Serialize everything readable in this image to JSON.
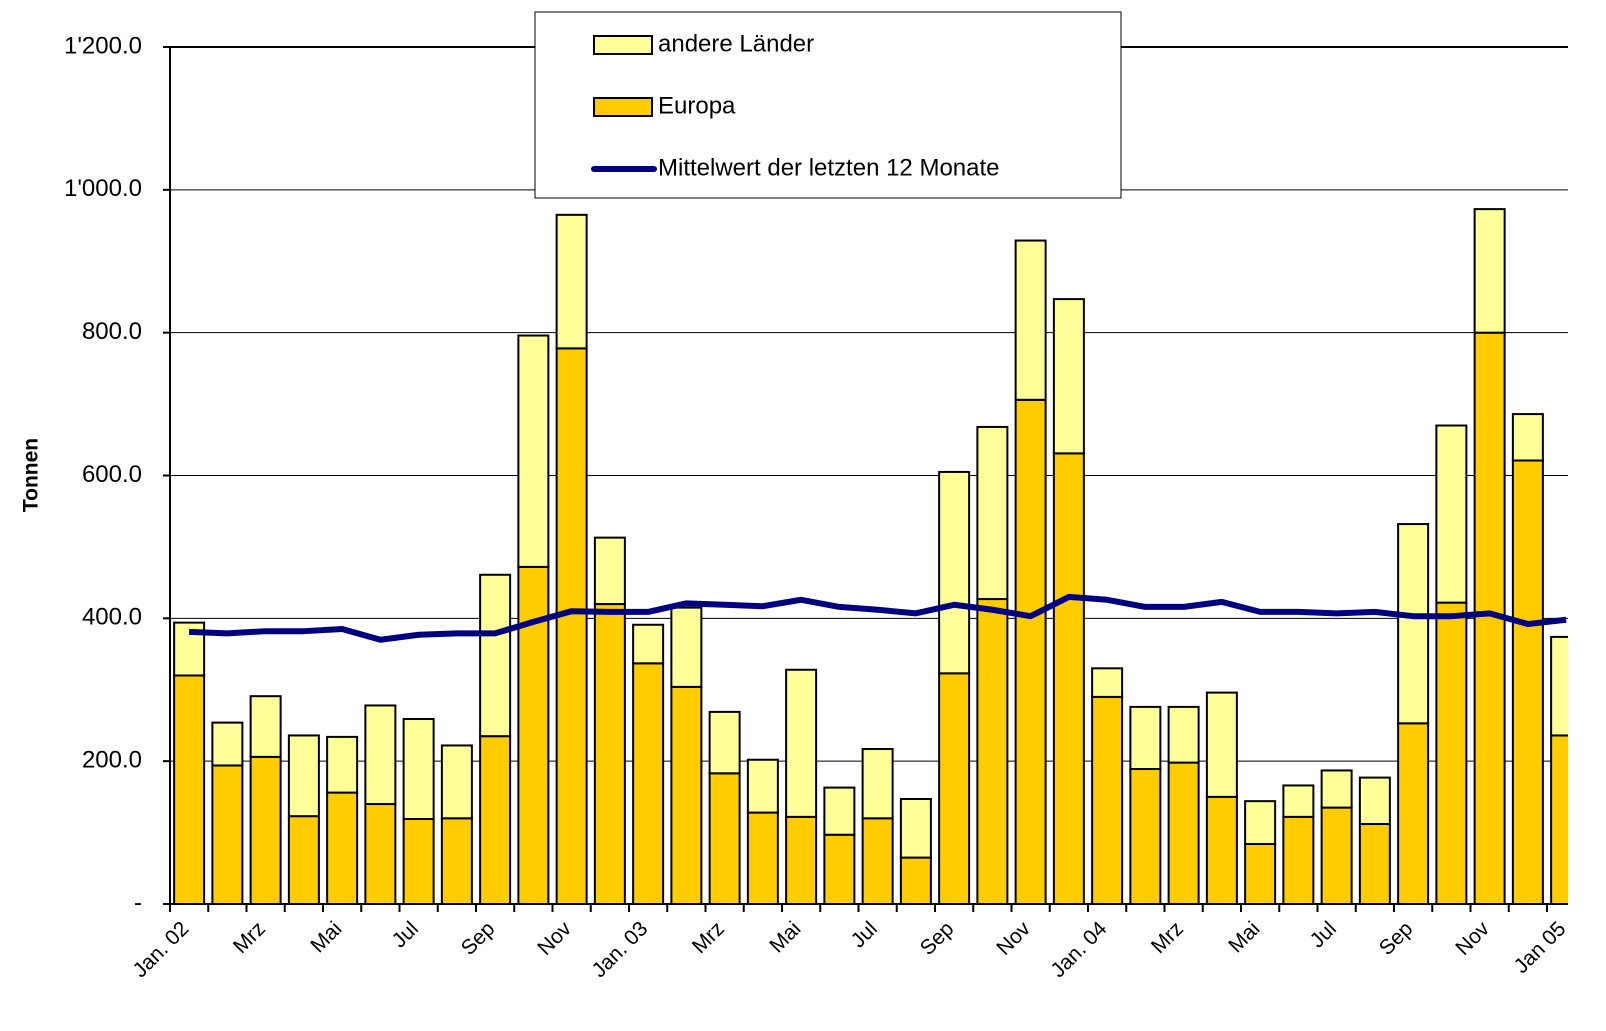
{
  "chart_data": {
    "type": "bar",
    "stacked": true,
    "y_label": "Tonnen",
    "categories": [
      "Jan. 02",
      null,
      "Mrz",
      null,
      "Mai",
      null,
      "Jul",
      null,
      "Sep",
      null,
      "Nov",
      null,
      "Jan. 03",
      null,
      "Mrz",
      null,
      "Mai",
      null,
      "Jul",
      null,
      "Sep",
      null,
      "Nov",
      null,
      "Jan. 04",
      null,
      "Mrz",
      null,
      "Mai",
      null,
      "Jul",
      null,
      "Sep",
      null,
      "Nov",
      null,
      "Jan 05"
    ],
    "series": [
      {
        "name": "Europa",
        "color": "#ffcc00",
        "values": [
          320,
          194,
          206,
          123,
          156,
          140,
          119,
          120,
          235,
          472,
          778,
          420,
          337,
          304,
          183,
          128,
          122,
          97,
          120,
          65,
          323,
          427,
          706,
          631,
          290,
          189,
          198,
          150,
          84,
          122,
          135,
          112,
          253,
          422,
          800,
          621,
          236
        ]
      },
      {
        "name": "andere Länder",
        "color": "#ffff99",
        "values": [
          74,
          60,
          85,
          113,
          78,
          138,
          140,
          102,
          226,
          324,
          187,
          93,
          54,
          111,
          86,
          74,
          206,
          66,
          97,
          82,
          282,
          241,
          223,
          216,
          40,
          87,
          78,
          146,
          60,
          44,
          52,
          65,
          279,
          248,
          173,
          65,
          138
        ]
      },
      {
        "name": "Mittelwert der letzten 12 Monate",
        "type": "line",
        "color": "#000080",
        "values": [
          381,
          379,
          382,
          382,
          385,
          370,
          377,
          379,
          379,
          395,
          410,
          409,
          409,
          421,
          419,
          417,
          426,
          416,
          412,
          407,
          419,
          412,
          403,
          430,
          426,
          416,
          416,
          423,
          409,
          409,
          407,
          409,
          403,
          403,
          407,
          392,
          398
        ]
      }
    ],
    "ylim": [
      0,
      1200
    ],
    "yticks": [
      {
        "value": 0,
        "label": "-"
      },
      {
        "value": 200,
        "label": "200.0"
      },
      {
        "value": 400,
        "label": "400.0"
      },
      {
        "value": 600,
        "label": "600.0"
      },
      {
        "value": 800,
        "label": "800.0"
      },
      {
        "value": 1000,
        "label": "1'000.0"
      },
      {
        "value": 1200,
        "label": "1'200.0"
      }
    ],
    "grid": true
  }
}
